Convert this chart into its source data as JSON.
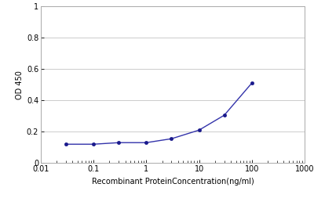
{
  "x_values": [
    0.03,
    0.1,
    0.3,
    1,
    3,
    10,
    30,
    100
  ],
  "y_values": [
    0.12,
    0.12,
    0.13,
    0.13,
    0.155,
    0.21,
    0.305,
    0.51
  ],
  "line_color": "#3333AA",
  "marker_color": "#1a1a8c",
  "marker_style": "o",
  "marker_size": 3,
  "line_width": 1.0,
  "xlabel": "Recombinant ProteinConcentration(ng/ml)",
  "ylabel": "OD 450",
  "xlim": [
    0.01,
    1000
  ],
  "ylim": [
    0,
    1
  ],
  "yticks": [
    0,
    0.2,
    0.4,
    0.6,
    0.8,
    1
  ],
  "xtick_labels": [
    "0.01",
    "0.1",
    "1",
    "10",
    "100",
    "1000"
  ],
  "xtick_values": [
    0.01,
    0.1,
    1,
    10,
    100,
    1000
  ],
  "xlabel_fontsize": 7,
  "ylabel_fontsize": 7,
  "tick_fontsize": 7,
  "background_color": "#ffffff",
  "grid_color": "#cccccc",
  "spine_color": "#aaaaaa"
}
